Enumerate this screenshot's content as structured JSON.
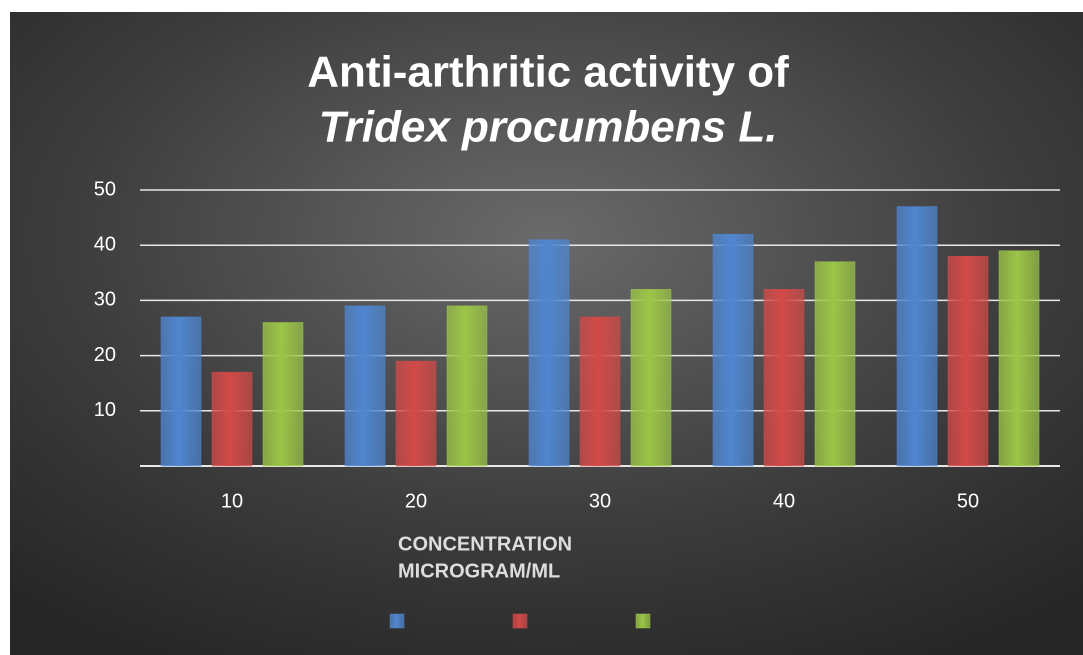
{
  "chart_data": {
    "type": "bar",
    "title": [
      "Anti-arthritic activity of",
      "Tridex procumbens L."
    ],
    "xlabel": [
      "CONCENTRATION",
      "MICROGRAM/ML"
    ],
    "categories": [
      10,
      20,
      30,
      40,
      50
    ],
    "series": [
      {
        "color": "#4f86d0",
        "values": [
          27,
          29,
          41,
          42,
          47
        ]
      },
      {
        "color": "#d24a48",
        "values": [
          17,
          19,
          27,
          32,
          38
        ]
      },
      {
        "color": "#9cc548",
        "values": [
          26,
          29,
          32,
          37,
          39
        ]
      }
    ],
    "ylim": [
      0,
      50
    ],
    "yticks": [
      10,
      20,
      30,
      40,
      50
    ],
    "grid": true
  }
}
